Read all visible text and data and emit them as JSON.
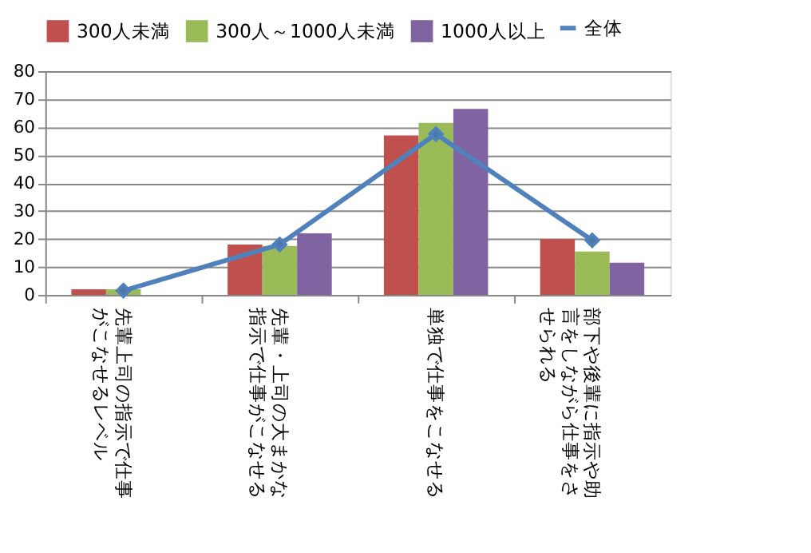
{
  "chart_data": {
    "type": "bar",
    "categories": [
      "先輩上司の指示で仕事がこなせるレベル",
      "先輩・上司の大まかな指示で仕事がこなせる",
      "単独で仕事をこなせる",
      "部下や後輩に指示や助言をしながら仕事をさせられる"
    ],
    "series": [
      {
        "name": "300人未満",
        "color": "#c0504d",
        "values": [
          2,
          18,
          57,
          20
        ]
      },
      {
        "name": "300人～1000人未満",
        "color": "#9bbb59",
        "values": [
          2,
          17.5,
          61.5,
          15.5
        ]
      },
      {
        "name": "1000人以上",
        "color": "#8064a2",
        "values": [
          0,
          22,
          66.5,
          11.5
        ]
      },
      {
        "name": "全体",
        "color": "#4f81bd",
        "type": "line",
        "marker": "diamond",
        "values": [
          1.5,
          18,
          57.5,
          19.5
        ]
      }
    ],
    "ylim": [
      0,
      80
    ],
    "yticks": [
      0,
      10,
      20,
      30,
      40,
      50,
      60,
      70,
      80
    ],
    "grid": true,
    "legend": "top"
  }
}
